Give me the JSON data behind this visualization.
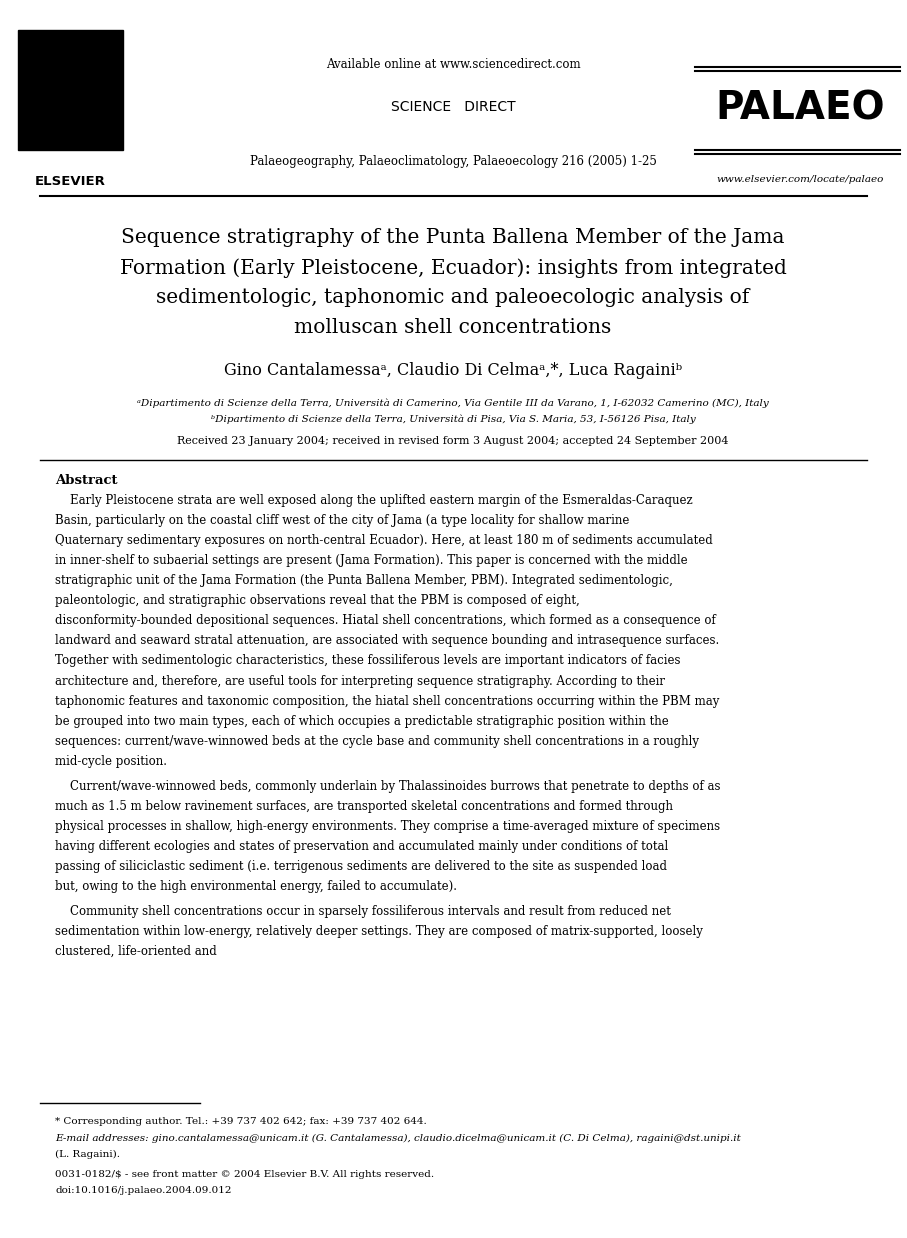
{
  "bg_color": "#ffffff",
  "page_width": 9.07,
  "page_height": 12.38,
  "dpi": 100,
  "header_available_online": "Available online at www.sciencedirect.com",
  "header_sciencedirect": "SCIENCE   DIRECT",
  "header_journal_line": "Palaeogeography, Palaeoclimatology, Palaeoecology 216 (2005) 1-25",
  "header_palaeo": "PALAEO",
  "header_elsevier": "ELSEVIER",
  "header_website": "www.elsevier.com/locate/palaeo",
  "title_line1": "Sequence stratigraphy of the Punta Ballena Member of the Jama",
  "title_line2": "Formation (Early Pleistocene, Ecuador): insights from integrated",
  "title_line3": "sedimentologic, taphonomic and paleoecologic analysis of",
  "title_line4": "molluscan shell concentrations",
  "authors": "Gino Cantalamessaᵃ, Claudio Di Celmaᵃ,*, Luca Ragainiᵇ",
  "affil_a": "ᵃDipartimento di Scienze della Terra, Università di Camerino, Via Gentile III da Varano, 1, I-62032 Camerino (MC), Italy",
  "affil_b": "ᵇDipartimento di Scienze della Terra, Università di Pisa, Via S. Maria, 53, I-56126 Pisa, Italy",
  "received": "Received 23 January 2004; received in revised form 3 August 2004; accepted 24 September 2004",
  "abstract_heading": "Abstract",
  "abstract_p1": "Early Pleistocene strata are well exposed along the uplifted eastern margin of the Esmeraldas-Caraquez Basin, particularly on the coastal cliff west of the city of Jama (a type locality for shallow marine Quaternary sedimentary exposures on north-central Ecuador). Here, at least 180 m of sediments accumulated in inner-shelf to subaerial settings are present (Jama Formation). This paper is concerned with the middle stratigraphic unit of the Jama Formation (the Punta Ballena Member, PBM). Integrated sedimentologic, paleontologic, and stratigraphic observations reveal that the PBM is composed of eight, disconformity-bounded depositional sequences. Hiatal shell concentrations, which formed as a consequence of landward and seaward stratal attenuation, are associated with sequence bounding and intrasequence surfaces. Together with sedimentologic characteristics, these fossiliferous levels are important indicators of facies architecture and, therefore, are useful tools for interpreting sequence stratigraphy. According to their taphonomic features and taxonomic composition, the hiatal shell concentrations occurring within the PBM may be grouped into two main types, each of which occupies a predictable stratigraphic position within the sequences: current/wave-winnowed beds at the cycle base and community shell concentrations in a roughly mid-cycle position.",
  "abstract_p2_before": "Current/wave-winnowed beds, commonly underlain by ",
  "abstract_p2_italic": "Thalassinoides",
  "abstract_p2_after": " burrows that penetrate to depths of as much as 1.5 m below ravinement surfaces, are transported skeletal concentrations and formed through physical processes in shallow, high-energy environments. They comprise a time-averaged mixture of specimens having different ecologies and states of preservation and accumulated mainly under conditions of total passing of siliciclastic sediment (i.e. terrigenous sediments are delivered to the site as suspended load but, owing to the high environmental energy, failed to accumulate).",
  "abstract_p3": "Community shell concentrations occur in sparsely fossiliferous intervals and result from reduced net sedimentation within low-energy, relatively deeper settings. They are composed of matrix-supported, loosely clustered, life-oriented and",
  "footnote_star": "* Corresponding author. Tel.: +39 737 402 642; fax: +39 737 402 644.",
  "footnote_email_label": "E-mail addresses: ",
  "footnote_email_body": "gino.cantalamessa@unicam.it (G. Cantalamessa), claudio.dicelma@unicam.it (C. Di Celma), ragaini@dst.unipi.it",
  "footnote_email_end": "(L. Ragaini).",
  "footnote_issn": "0031-0182/$ - see front matter © 2004 Elsevier B.V. All rights reserved.",
  "footnote_doi": "doi:10.1016/j.palaeo.2004.09.012"
}
